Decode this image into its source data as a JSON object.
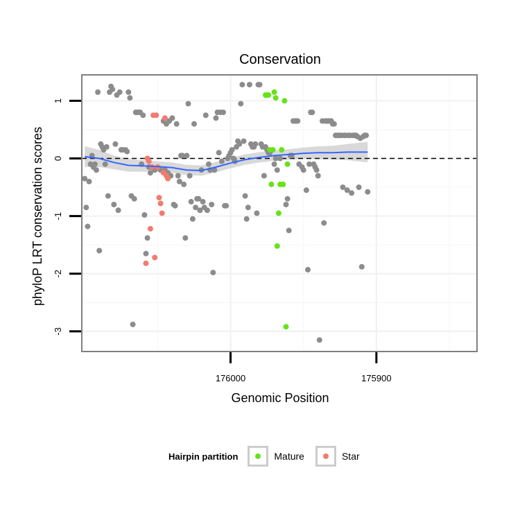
{
  "chart_data": {
    "type": "scatter",
    "title": "Conservation",
    "xlabel": "Genomic Position",
    "ylabel": "phyloP LRT conservation scores",
    "xlim": [
      176102,
      175831
    ],
    "x_reversed": true,
    "ylim": [
      -3.35,
      1.45
    ],
    "x_ticks": [
      176000,
      175900
    ],
    "x_tick_labels": [
      "176000",
      "175900"
    ],
    "y_ticks": [
      1,
      0,
      -1,
      -2,
      -3
    ],
    "y_tick_labels": [
      "1",
      "0",
      "-1",
      "-2",
      "-3"
    ],
    "reference_line": {
      "y": 0,
      "style": "dashed"
    },
    "grid": true,
    "legend": {
      "title": "Hairpin partition",
      "placement": "bottom",
      "entries": [
        {
          "name": "Mature",
          "color": "#66e31a"
        },
        {
          "name": "Star",
          "color": "#f27b6e"
        }
      ]
    },
    "colors": {
      "other": "#8c8c8c",
      "smooth": "#3366ff",
      "band": "#cccccc"
    },
    "series": [
      {
        "group": "other",
        "points": [
          [
            176100,
            -0.35
          ],
          [
            176099,
            -0.85
          ],
          [
            176098,
            -1.18
          ],
          [
            176097,
            -0.4
          ],
          [
            176096,
            -0.1
          ],
          [
            176095,
            0.05
          ],
          [
            176094,
            -0.15
          ],
          [
            176093,
            -0.1
          ],
          [
            176092,
            -0.2
          ],
          [
            176091,
            1.15
          ],
          [
            176090,
            -1.6
          ],
          [
            176089,
            0.25
          ],
          [
            176088,
            0.2
          ],
          [
            176087,
            0.15
          ],
          [
            176086,
            -0.1
          ],
          [
            176085,
            0.2
          ],
          [
            176084,
            -0.65
          ],
          [
            176083,
            1.15
          ],
          [
            176082,
            1.25
          ],
          [
            176081,
            1.2
          ],
          [
            176080,
            -0.8
          ],
          [
            176079,
            0.25
          ],
          [
            176078,
            1.1
          ],
          [
            176077,
            -0.9
          ],
          [
            176076,
            1.15
          ],
          [
            176075,
            0.15
          ],
          [
            176074,
            0.15
          ],
          [
            176072,
            0.15
          ],
          [
            176071,
            0.12
          ],
          [
            176070,
            1.15
          ],
          [
            176069,
            1.05
          ],
          [
            176068,
            -0.65
          ],
          [
            176067,
            -2.88
          ],
          [
            176066,
            -0.7
          ],
          [
            176065,
            0.8
          ],
          [
            176064,
            0.8
          ],
          [
            176063,
            0.8
          ],
          [
            176062,
            0.8
          ],
          [
            176061,
            -0.1
          ],
          [
            176060,
            0.75
          ],
          [
            176059,
            -0.98
          ],
          [
            176058,
            -1.65
          ],
          [
            176057,
            -1.38
          ],
          [
            176056,
            -0.15
          ],
          [
            176055,
            -0.25
          ],
          [
            176054,
            -0.15
          ],
          [
            176052,
            -0.2
          ],
          [
            176048,
            -0.2
          ],
          [
            176046,
            0.65
          ],
          [
            176045,
            -0.2
          ],
          [
            176044,
            0.6
          ],
          [
            176043,
            -0.25
          ],
          [
            176042,
            0.65
          ],
          [
            176041,
            -0.3
          ],
          [
            176040,
            0.7
          ],
          [
            176039,
            -0.8
          ],
          [
            176038,
            -0.82
          ],
          [
            176037,
            0.6
          ],
          [
            176036,
            -0.3
          ],
          [
            176035,
            -0.4
          ],
          [
            176034,
            0.05
          ],
          [
            176033,
            0.05
          ],
          [
            176032,
            -0.45
          ],
          [
            176031,
            -1.38
          ],
          [
            176030,
            0.05
          ],
          [
            176029,
            0.95
          ],
          [
            176028,
            -0.3
          ],
          [
            176027,
            -0.75
          ],
          [
            176026,
            -1.05
          ],
          [
            176025,
            0.6
          ],
          [
            176024,
            -0.85
          ],
          [
            176023,
            -0.7
          ],
          [
            176022,
            -0.7
          ],
          [
            176021,
            -0.9
          ],
          [
            176020,
            -0.2
          ],
          [
            176019,
            -0.75
          ],
          [
            176018,
            -0.85
          ],
          [
            176017,
            0.75
          ],
          [
            176016,
            -0.9
          ],
          [
            176015,
            -0.1
          ],
          [
            176014,
            -0.2
          ],
          [
            176013,
            -0.8
          ],
          [
            176012,
            -1.98
          ],
          [
            176011,
            -0.2
          ],
          [
            176010,
            0.7
          ],
          [
            176009,
            0.8
          ],
          [
            176008,
            0.1
          ],
          [
            176007,
            0.8
          ],
          [
            176006,
            -0.05
          ],
          [
            176005,
            0.8
          ],
          [
            176004,
            -0.82
          ],
          [
            176003,
            -0.82
          ],
          [
            176002,
            0.0
          ],
          [
            176001,
            0.05
          ],
          [
            176000,
            0.1
          ],
          [
            175999,
            0.15
          ],
          [
            175998,
            0.0
          ],
          [
            175997,
            -0.05
          ],
          [
            175996,
            0.2
          ],
          [
            175995,
            0.3
          ],
          [
            175994,
            0.25
          ],
          [
            175993,
            0.95
          ],
          [
            175992,
            1.28
          ],
          [
            175991,
            0.3
          ],
          [
            175990,
            -0.65
          ],
          [
            175989,
            -1.05
          ],
          [
            175988,
            -0.85
          ],
          [
            175987,
            1.28
          ],
          [
            175986,
            0.25
          ],
          [
            175985,
            0.2
          ],
          [
            175984,
            0.2
          ],
          [
            175983,
            0.25
          ],
          [
            175982,
            -0.95
          ],
          [
            175981,
            1.28
          ],
          [
            175980,
            1.28
          ],
          [
            175979,
            0.25
          ],
          [
            175978,
            0.2
          ],
          [
            175977,
            -0.3
          ],
          [
            175976,
            0.2
          ],
          [
            175975,
            0.15
          ],
          [
            175974,
            0.1
          ],
          [
            175973,
            0.1
          ],
          [
            175970,
            -0.1
          ],
          [
            175969,
            0.0
          ],
          [
            175968,
            -0.2
          ],
          [
            175966,
            0.0
          ],
          [
            175962,
            -0.8
          ],
          [
            175961,
            -0.7
          ],
          [
            175960,
            -1.25
          ],
          [
            175959,
            0.05
          ],
          [
            175958,
            0.05
          ],
          [
            175957,
            0.65
          ],
          [
            175956,
            0.65
          ],
          [
            175955,
            0.65
          ],
          [
            175954,
            0.65
          ],
          [
            175953,
            -0.1
          ],
          [
            175951,
            -0.15
          ],
          [
            175950,
            -0.2
          ],
          [
            175948,
            -0.55
          ],
          [
            175947,
            -1.93
          ],
          [
            175946,
            -0.1
          ],
          [
            175945,
            0.8
          ],
          [
            175944,
            0.8
          ],
          [
            175943,
            -0.1
          ],
          [
            175942,
            -0.15
          ],
          [
            175941,
            -0.2
          ],
          [
            175940,
            -0.3
          ],
          [
            175939,
            -3.15
          ],
          [
            175937,
            0.65
          ],
          [
            175936,
            -1.12
          ],
          [
            175935,
            0.65
          ],
          [
            175934,
            0.65
          ],
          [
            175933,
            0.65
          ],
          [
            175932,
            0.65
          ],
          [
            175931,
            0.65
          ],
          [
            175930,
            0.6
          ],
          [
            175929,
            0.6
          ],
          [
            175928,
            0.4
          ],
          [
            175927,
            0.4
          ],
          [
            175926,
            0.4
          ],
          [
            175925,
            0.4
          ],
          [
            175924,
            0.4
          ],
          [
            175923,
            -0.5
          ],
          [
            175922,
            0.4
          ],
          [
            175921,
            0.4
          ],
          [
            175920,
            -0.55
          ],
          [
            175919,
            0.4
          ],
          [
            175918,
            0.4
          ],
          [
            175917,
            -0.6
          ],
          [
            175916,
            0.4
          ],
          [
            175915,
            0.4
          ],
          [
            175914,
            0.4
          ],
          [
            175913,
            0.38
          ],
          [
            175912,
            -0.5
          ],
          [
            175911,
            0.35
          ],
          [
            175910,
            -1.88
          ],
          [
            175909,
            0.38
          ],
          [
            175908,
            0.4
          ],
          [
            175907,
            0.4
          ],
          [
            175906,
            -0.58
          ]
        ]
      },
      {
        "group": "Mature",
        "points": [
          [
            175976,
            1.1
          ],
          [
            175975,
            1.1
          ],
          [
            175974,
            1.1
          ],
          [
            175973,
            0.15
          ],
          [
            175972,
            -0.45
          ],
          [
            175971,
            0.15
          ],
          [
            175970,
            1.15
          ],
          [
            175969,
            1.05
          ],
          [
            175968,
            -1.52
          ],
          [
            175967,
            -0.95
          ],
          [
            175966,
            -0.45
          ],
          [
            175965,
            0.15
          ],
          [
            175964,
            -0.45
          ],
          [
            175963,
            1.0
          ],
          [
            175962,
            -2.92
          ],
          [
            175961,
            -0.1
          ]
        ]
      },
      {
        "group": "Star",
        "points": [
          [
            176058,
            -1.82
          ],
          [
            176057,
            0.0
          ],
          [
            176056,
            -0.05
          ],
          [
            176055,
            -1.22
          ],
          [
            176054,
            -0.15
          ],
          [
            176053,
            0.75
          ],
          [
            176052,
            -1.72
          ],
          [
            176051,
            0.75
          ],
          [
            176050,
            -0.15
          ],
          [
            176049,
            -0.68
          ],
          [
            176048,
            -0.78
          ],
          [
            176047,
            -0.95
          ],
          [
            176046,
            -0.25
          ],
          [
            176045,
            0.7
          ],
          [
            176044,
            -0.3
          ],
          [
            176043,
            -0.35
          ]
        ]
      }
    ],
    "smooth": [
      [
        176100,
        0.03
      ],
      [
        176090,
        0.0
      ],
      [
        176080,
        -0.07
      ],
      [
        176070,
        -0.12
      ],
      [
        176060,
        -0.13
      ],
      [
        176050,
        -0.14
      ],
      [
        176040,
        -0.16
      ],
      [
        176030,
        -0.2
      ],
      [
        176020,
        -0.21
      ],
      [
        176010,
        -0.15
      ],
      [
        176000,
        -0.08
      ],
      [
        175990,
        -0.02
      ],
      [
        175980,
        0.02
      ],
      [
        175970,
        0.05
      ],
      [
        175960,
        0.07
      ],
      [
        175950,
        0.09
      ],
      [
        175940,
        0.1
      ],
      [
        175930,
        0.1
      ],
      [
        175920,
        0.11
      ],
      [
        175906,
        0.11
      ]
    ],
    "smooth_band": [
      0.18,
      0.15,
      0.12,
      0.11,
      0.1,
      0.09,
      0.09,
      0.09,
      0.09,
      0.09,
      0.09,
      0.09,
      0.09,
      0.09,
      0.09,
      0.1,
      0.11,
      0.12,
      0.14,
      0.18
    ]
  }
}
